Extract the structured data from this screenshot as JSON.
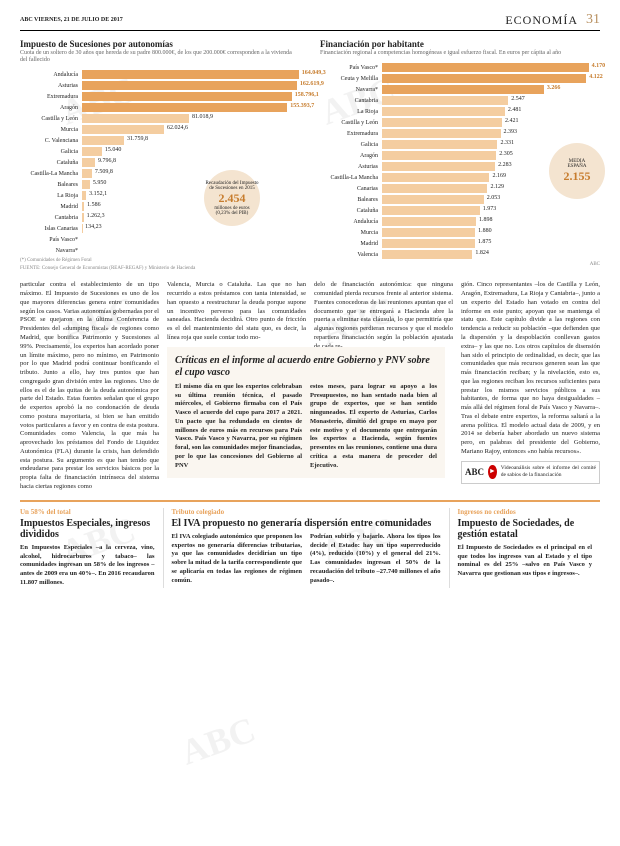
{
  "header": {
    "left": "ABC    VIERNES, 21 DE JULIO DE 2017",
    "section": "ECONOMÍA",
    "pagenum": "31"
  },
  "chart1": {
    "title": "Impuesto de Sucesiones por autonomías",
    "sub": "Cuota de un soltero de 30 años que hereda de su padre 800.000€, de los que 200.000€ corresponden a la vivienda del fallecido",
    "max": 165000,
    "rows": [
      {
        "label": "Andalucía",
        "val": 164049.3,
        "disp": "164.049,3",
        "hl": true
      },
      {
        "label": "Asturias",
        "val": 162619.9,
        "disp": "162.619,9",
        "hl": true
      },
      {
        "label": "Extremadura",
        "val": 158796.1,
        "disp": "158.796,1",
        "hl": true
      },
      {
        "label": "Aragón",
        "val": 155393.7,
        "disp": "155.393,7",
        "hl": true
      },
      {
        "label": "Castilla y León",
        "val": 81018.9,
        "disp": "81.018,9"
      },
      {
        "label": "Murcia",
        "val": 62024.6,
        "disp": "62.024,6"
      },
      {
        "label": "C. Valenciana",
        "val": 31759.8,
        "disp": "31.759,8"
      },
      {
        "label": "Galicia",
        "val": 15040,
        "disp": "15.040"
      },
      {
        "label": "Cataluña",
        "val": 9796.8,
        "disp": "9.796,8"
      },
      {
        "label": "Castilla-La Mancha",
        "val": 7509.8,
        "disp": "7.509,8"
      },
      {
        "label": "Baleares",
        "val": 5950,
        "disp": "5.950"
      },
      {
        "label": "La Rioja",
        "val": 3152.1,
        "disp": "3.152,1"
      },
      {
        "label": "Madrid",
        "val": 1586,
        "disp": "1.586"
      },
      {
        "label": "Cantabria",
        "val": 1262.3,
        "disp": "1.262,3"
      },
      {
        "label": "Islas Canarias",
        "val": 134.23,
        "disp": "134,23"
      },
      {
        "label": "País Vasco*",
        "val": 0,
        "disp": ""
      },
      {
        "label": "Navarra*",
        "val": 0,
        "disp": ""
      }
    ],
    "circle": {
      "line1": "Recaudación del Impuesto",
      "line2": "de Sucesiones en 2015",
      "big": "2.454",
      "line3": "millones de euros",
      "line4": "(0,23% del PIB)"
    },
    "note": "(*) Comunidades de Régimen Foral",
    "source": "FUENTE: Consejo General de Economistas (REAF-REGAF) y Ministerio de Hacienda"
  },
  "chart2": {
    "title": "Financiación por habitante",
    "sub": "Financiación regional a competencias homogéneas e igual esfuerzo fiscal. En euros per cápita al año",
    "max": 4400,
    "rows": [
      {
        "label": "País Vasco*",
        "val": 4170,
        "disp": "4.170",
        "hl": true
      },
      {
        "label": "Ceuta y Melilla",
        "val": 4122,
        "disp": "4.122",
        "hl": true
      },
      {
        "label": "Navarra*",
        "val": 3266,
        "disp": "3.266",
        "hl": true
      },
      {
        "label": "Cantabria",
        "val": 2547,
        "disp": "2.547"
      },
      {
        "label": "La Rioja",
        "val": 2481,
        "disp": "2.481"
      },
      {
        "label": "Castilla y León",
        "val": 2421,
        "disp": "2.421"
      },
      {
        "label": "Extremadura",
        "val": 2393,
        "disp": "2.393"
      },
      {
        "label": "Galicia",
        "val": 2331,
        "disp": "2.331"
      },
      {
        "label": "Aragón",
        "val": 2305,
        "disp": "2.305"
      },
      {
        "label": "Asturias",
        "val": 2283,
        "disp": "2.283"
      },
      {
        "label": "Castilla-La Mancha",
        "val": 2169,
        "disp": "2.169"
      },
      {
        "label": "Canarias",
        "val": 2129,
        "disp": "2.129"
      },
      {
        "label": "Baleares",
        "val": 2053,
        "disp": "2.053"
      },
      {
        "label": "Cataluña",
        "val": 1973,
        "disp": "1.973"
      },
      {
        "label": "Andalucía",
        "val": 1898,
        "disp": "1.898"
      },
      {
        "label": "Murcia",
        "val": 1880,
        "disp": "1.880"
      },
      {
        "label": "Madrid",
        "val": 1875,
        "disp": "1.875"
      },
      {
        "label": "Valencia",
        "val": 1824,
        "disp": "1.824"
      }
    ],
    "circle": {
      "line1": "MEDIA",
      "line2": "ESPAÑA",
      "big": "2.155"
    },
    "source": "ABC"
  },
  "body": {
    "c1": "particular contra el establecimiento de un tipo máximo. El Impuesto de Sucesiones es uno de los que mayores diferencias genera entre comunidades según los casos. Varias autonomías gobernadas por el PSOE se quejaron en la última Conferencia de Presidentes del «dumping fiscal» de regiones como Madrid, que bonifica Patrimonio y Sucesiones al 99%. Precisamente, los expertos han acordado poner un límite máximo, pero no mínimo, en Patrimonio por lo que Madrid podrá continuar bonificando el tributo. Junto a ello, hay tres puntos que han congregado gran división entre las regiones. Uno de ellos es el de las quitas de la deuda autonómica por parte del Estado. Estas fuentes señalan que el grupo de expertos aprobó la no condonación de deuda como postura mayoritaria, si bien se han emitido votos particulares a favor y en contra de esta postura. Comunidades como Valencia, la que más ha aprovechado los préstamos del Fondo de Liquidez Autonómica (FLA) durante la crisis, han defendido esta postura. Su argumento es que han tenido que endeudarse para prestar los servicios básicos por la propia falta de financiación intrínseca del sistema hacia ciertas regiones como",
    "c2": "Valencia, Murcia o Cataluña. Las que no han recurrido a estos préstamos con tanta intensidad, se han opuesto a reestructurar la deuda porque supone un incentivo perverso para las comunidades saneadas. Hacienda decidirá. Otro punto de fricción es el del mantenimiento del statu quo, es decir, la línea roja que suele contar todo mo-",
    "c3": "delo de financiación autonómica: que ninguna comunidad pierda recursos frente al anterior sistema. Fuentes conocedoras de las reuniones apuntan que el documento que se entregará a Hacienda abre la puerta a eliminar esta cláusula, lo que permitiría que algunas regiones perdieran recursos y que el modelo repartiera financiación según la población ajustada de cada re-",
    "c4": "gión. Cinco representantes –los de Castilla y León, Aragón, Extremadura, La Rioja y Cantabria–, junto a un experto del Estado han votado en contra del informe en este punto; apoyan que se mantenga el statu quo. Este capítulo divide a las regiones con tendencia a reducir su población –que defienden que la dispersión y la despoblación conllevan gastos extra– y las que no. Los otros capítulos de disensión han sido el principio de ordinalidad, es decir, que las comunidades que más recursos generen sean las que más financiación reciban; y la nivelación, esto es, que las regiones reciban los recursos suficientes para prestar los mismos servicios públicos a sus habitantes, de forma que no haya desigualdades –más allá del régimen foral de País Vasco y Navarra–. Tras el debate entre expertos, la reforma saltará a la arena política. El modelo actual data de 2009, y en 2014 se debería haber abordado un nuevo sistema pero, en palabras del presidente del Gobierno, Mariano Rajoy, entonces «no había recursos»."
  },
  "inset": {
    "title": "Críticas en el informe al acuerdo entre Gobierno y PNV sobre el cupo vasco",
    "c1": "El mismo día en que los expertos celebraban su última reunión técnica, el pasado miércoles, el Gobierno firmaba con el País Vasco el acuerdo del cupo para 2017 a 2021. Un pacto que ha redundado en cientos de millones de euros más en recursos para País Vasco. País Vasco y Navarra, por su régimen foral, son las comunidades mejor financiadas, por lo que las concesiones del Gobierno al PNV",
    "c2": "estos meses, para lograr su apoyo a los Presupuestos, no han sentado nada bien al grupo de expertos, que se han sentido ninguneados. El experto de Asturias, Carlos Monasterio, dimitió del grupo en mayo por este motivo y el documento que entregarán los expertos a Hacienda, según fuentes presentes en las reuniones, contiene una dura crítica a esta manera de proceder del Ejecutivo."
  },
  "abc": {
    "logo": "ABC",
    "text": "Videoanálisis sobre el informe del comité de sabios de la financiación",
    "icon": "►"
  },
  "bottom": [
    {
      "kicker": "Un 58% del total",
      "title": "Impuestos Especiales, ingresos divididos",
      "text": "En Impuestos Especiales –a la cerveza, vino, alcohol, hidrocarburos y tabaco– las comunidades ingresan un 58% de los ingresos –antes de 2009 era un 40%–. En 2016 recaudaron 11.807 millones."
    },
    {
      "kicker": "Tributo colegiado",
      "title": "El IVA propuesto no generaría dispersión entre comunidades",
      "c1": "El IVA colegiado autonómico que proponen los expertos no generaría diferencias tributarias, ya que las comunidades decidirían un tipo sobre la mitad de la tarifa correspondiente que se aplicaría en todas las regiones de régimen común.",
      "c2": "Podrían subirlo y bajarlo. Ahora los tipos los decide el Estado: hay un tipo superreducido (4%), reducido (10%) y el general del 21%. Las comunidades ingresan el 50% de la recaudación del tributo –27.740 millones el año pasado–."
    },
    {
      "kicker": "Ingresos no cedidos",
      "title": "Impuesto de Sociedades, de gestión estatal",
      "text": "El Impuesto de Sociedades es el principal en el que todos los ingresos van al Estado y el tipo nominal es del 25% –salvo en País Vasco y Navarra que gestionan sus tipos e ingresos–."
    }
  ]
}
